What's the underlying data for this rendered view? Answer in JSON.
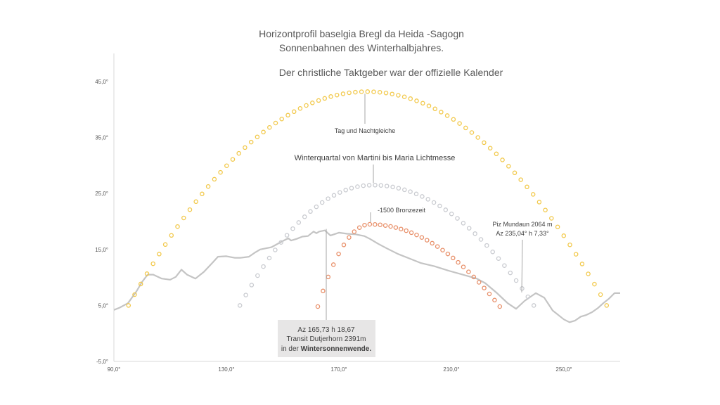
{
  "chart_data": {
    "type": "scatter",
    "title_lines": [
      "Horizontprofil baselgia Bregl da Heida -Sagogn",
      "Sonnenbahnen des Winterhalbjahres.",
      "Der christliche Taktgeber war der offizielle Kalender"
    ],
    "x_ticks": [
      "90,0°",
      "130,0°",
      "170,0°",
      "210,0°",
      "250,0°"
    ],
    "y_ticks": [
      "-5,0°",
      "5,0°",
      "15,0°",
      "25,0°",
      "35,0°",
      "45,0°"
    ],
    "xlim": [
      90,
      270
    ],
    "ylim": [
      -5,
      45
    ],
    "grid": false,
    "colors": {
      "equinox": "#F2C94C",
      "quarter": "#C9CBD0",
      "solstice": "#E8906A",
      "horizon": "#C4C4C4"
    },
    "series": [
      {
        "key": "equinox",
        "path": {
          "type": "arc",
          "x_start": 95.2,
          "x_end": 265.2,
          "peak_x": 180,
          "peak_y": 43.2,
          "end_y": 5.0,
          "points": 79
        }
      },
      {
        "key": "quarter",
        "path": {
          "type": "arc",
          "x_start": 134.8,
          "x_end": 239.3,
          "peak_x": 182,
          "peak_y": 26.5,
          "end_y": 5.0,
          "points": 51
        }
      },
      {
        "key": "solstice",
        "path": {
          "type": "arc",
          "x_start": 162.5,
          "x_end": 227.2,
          "peak_x": 181,
          "peak_y": 19.5,
          "end_y": 4.8,
          "points": 36
        }
      }
    ],
    "horizon": {
      "x": [
        90,
        92,
        95,
        98,
        100,
        102,
        104,
        107,
        110,
        112,
        114,
        116,
        119,
        122,
        125,
        127,
        130,
        133,
        135,
        138,
        140,
        142,
        146,
        150,
        152,
        153,
        155,
        157,
        159,
        161,
        162,
        163,
        165,
        167,
        170,
        173,
        176,
        179,
        181,
        184,
        187,
        191,
        195,
        199,
        204,
        209,
        214,
        219,
        222,
        226,
        230,
        233,
        236,
        240,
        243,
        246,
        250,
        252,
        254,
        256,
        258,
        260,
        262,
        264,
        266,
        268,
        270
      ],
      "y": [
        4.2,
        4.6,
        5.4,
        7.5,
        9.2,
        10.5,
        10.5,
        9.8,
        9.6,
        10.1,
        11.4,
        10.5,
        9.8,
        11.0,
        12.6,
        13.7,
        13.8,
        13.5,
        13.5,
        13.7,
        14.4,
        15.0,
        15.4,
        16.5,
        17.0,
        16.6,
        16.9,
        17.3,
        17.4,
        18.2,
        17.9,
        18.2,
        18.4,
        17.5,
        18.0,
        17.8,
        17.7,
        17.4,
        16.9,
        16.0,
        15.2,
        14.2,
        13.4,
        12.6,
        12.0,
        11.2,
        10.5,
        9.8,
        9.0,
        7.3,
        5.4,
        4.4,
        5.8,
        7.2,
        6.4,
        4.1,
        2.5,
        2.0,
        2.3,
        3.0,
        3.3,
        3.8,
        4.5,
        5.4,
        6.2,
        7.2,
        7.2
      ]
    },
    "annotations": [
      {
        "key": "equinox",
        "text": "Tag und Nachtgleiche"
      },
      {
        "key": "quarter",
        "text": "Winterquartal  von Martini bis Maria Lichtmesse"
      },
      {
        "key": "bronze",
        "text": "-1500 Bronzezeit"
      },
      {
        "key": "mundaun",
        "lines": [
          "Piz Mundaun 2064 m",
          "Az 235,04° h 7,33°"
        ]
      },
      {
        "key": "transit",
        "lines": [
          "Az 165,73 h 18,67",
          "Transit Dutjerhorn 2391m"
        ],
        "last_line_prefix": "in der ",
        "last_line_bold": "Wintersonnenwende."
      }
    ]
  }
}
